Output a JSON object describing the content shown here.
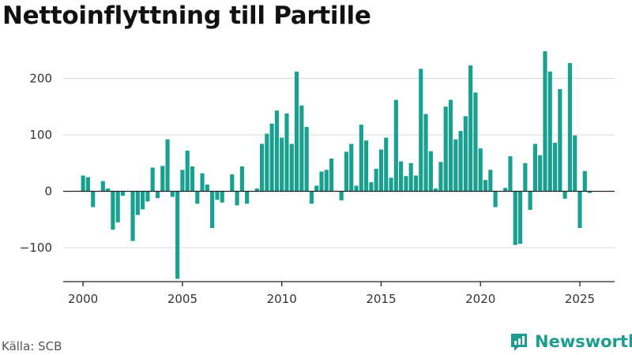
{
  "title": "Nettoinflyttning till Partille",
  "source": "Källa: SCB",
  "brand": {
    "name": "Newsworthy",
    "icon": "newsworthy-logo-icon"
  },
  "colors": {
    "bar": "#18a091",
    "grid": "#dddddd",
    "zero": "#222222",
    "brand": "#1b9e8f"
  },
  "chart_data": {
    "type": "bar",
    "title": "Nettoinflyttning till Partille",
    "xlabel": "",
    "ylabel": "",
    "ylim": [
      -160,
      255
    ],
    "xlim": [
      1999.0,
      2026.75
    ],
    "yticks": [
      -100,
      0,
      100,
      200
    ],
    "ytick_labels": [
      "−100",
      "0",
      "100",
      "200"
    ],
    "xticks": [
      2000,
      2005,
      2010,
      2015,
      2020,
      2025
    ],
    "xtick_labels": [
      "2000",
      "2005",
      "2010",
      "2015",
      "2020",
      "2025"
    ],
    "frequency": "quarterly",
    "series": [
      {
        "values": [
          28,
          25,
          -28,
          0,
          18,
          5,
          -68,
          -55,
          -8,
          0,
          -88,
          -42,
          -32,
          -18,
          42,
          -12,
          45,
          92,
          -10,
          -155,
          38,
          72,
          44,
          -22,
          32,
          12,
          -65,
          -15,
          -20,
          0,
          30,
          -25,
          44,
          -22,
          0,
          5,
          84,
          102,
          120,
          143,
          95,
          138,
          84,
          212,
          152,
          114,
          -22,
          10,
          35,
          38,
          58,
          0,
          -16,
          70,
          84,
          10,
          118,
          90,
          16,
          40,
          74,
          95,
          24,
          162,
          53,
          27,
          50,
          28,
          217,
          137,
          71,
          5,
          52,
          150,
          162,
          92,
          107,
          133,
          223,
          175,
          76,
          20,
          38,
          -28,
          0,
          6,
          62,
          -95,
          -93,
          50,
          -33,
          84,
          64,
          248,
          212,
          86,
          181,
          -13,
          227,
          99,
          -65,
          36,
          -3
        ]
      }
    ]
  }
}
